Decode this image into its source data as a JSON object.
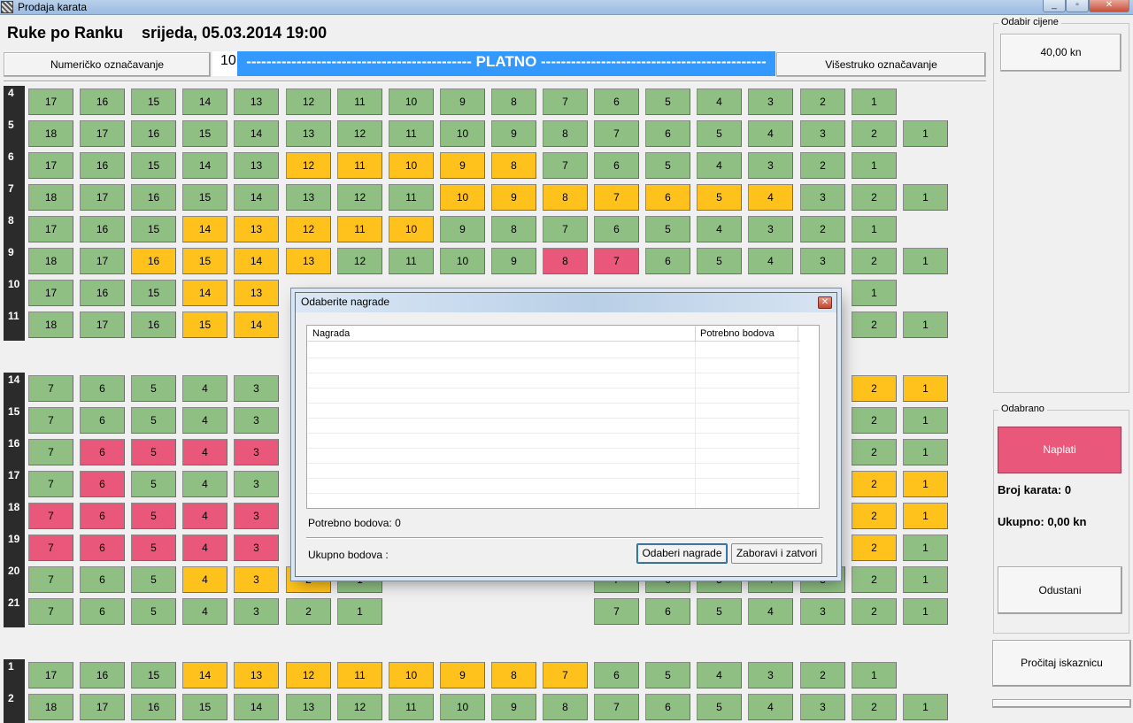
{
  "window": {
    "title": "Prodaja karata"
  },
  "header": {
    "event_name": "Ruke po Ranku",
    "event_datetime": "srijeda, 05.03.2014 19:00",
    "numeric_button": "Numeričko označavanje",
    "multi_button": "Višestruko označavanje",
    "hall_number": "10",
    "screen_label": "--------------------------------------------- PLATNO ---------------------------------------------"
  },
  "colors": {
    "free": "#8fbf83",
    "taken_yellow": "#ffc21c",
    "taken_pink": "#e9587a",
    "screen": "#3399ff"
  },
  "grid": {
    "rows": [
      {
        "label": "4",
        "seats": [
          "17",
          "16",
          "15",
          "14",
          "13",
          "12",
          "11",
          "10",
          "9",
          "8",
          "7",
          "6",
          "5",
          "4",
          "3",
          "2",
          "1"
        ],
        "status": "GGGGGGGGGGGGGGGGG"
      },
      {
        "label": "5",
        "seats": [
          "18",
          "17",
          "16",
          "15",
          "14",
          "13",
          "12",
          "11",
          "10",
          "9",
          "8",
          "7",
          "6",
          "5",
          "4",
          "3",
          "2",
          "1"
        ],
        "status": "GGGGGGGGGGGGGGGGGG"
      },
      {
        "label": "6",
        "seats": [
          "17",
          "16",
          "15",
          "14",
          "13",
          "12",
          "11",
          "10",
          "9",
          "8",
          "7",
          "6",
          "5",
          "4",
          "3",
          "2",
          "1"
        ],
        "status": "GGGGGYYYYYGGGGGGG"
      },
      {
        "label": "7",
        "seats": [
          "18",
          "17",
          "16",
          "15",
          "14",
          "13",
          "12",
          "11",
          "10",
          "9",
          "8",
          "7",
          "6",
          "5",
          "4",
          "3",
          "2",
          "1"
        ],
        "status": "GGGGGGGGYYYYYYYGGG"
      },
      {
        "label": "8",
        "seats": [
          "17",
          "16",
          "15",
          "14",
          "13",
          "12",
          "11",
          "10",
          "9",
          "8",
          "7",
          "6",
          "5",
          "4",
          "3",
          "2",
          "1"
        ],
        "status": "GGGYYYYYGGGGGGGGG"
      },
      {
        "label": "9",
        "seats": [
          "18",
          "17",
          "16",
          "15",
          "14",
          "13",
          "12",
          "11",
          "10",
          "9",
          "8",
          "7",
          "6",
          "5",
          "4",
          "3",
          "2",
          "1"
        ],
        "status": "GGYYYYGGGGPPGGGGGG"
      },
      {
        "label": "10",
        "seats": [
          "17",
          "16",
          "15",
          "14",
          "13",
          "",
          "",
          "",
          "",
          "",
          "",
          "",
          "",
          "",
          "",
          "",
          "1"
        ],
        "status": "GGGYYGGGGGPPPPPGG"
      },
      {
        "label": "11",
        "seats": [
          "18",
          "17",
          "16",
          "15",
          "14",
          "",
          "",
          "",
          "",
          "",
          "",
          "",
          "",
          "",
          "",
          "",
          "2",
          "1"
        ],
        "status": "GGGYYGGGGGGGGGGGGG"
      },
      {
        "label": "14",
        "seats": [
          "7",
          "6",
          "5",
          "4",
          "3",
          "",
          "",
          "",
          "",
          "",
          "",
          "",
          "",
          "",
          "",
          "",
          "2",
          "1"
        ],
        "status": "GGGGGGGGGGGGGGGGYY"
      },
      {
        "label": "15",
        "seats": [
          "7",
          "6",
          "5",
          "4",
          "3",
          "",
          "",
          "",
          "",
          "",
          "",
          "",
          "",
          "",
          "",
          "",
          "2",
          "1"
        ],
        "status": "GGGGGGGGGGGGGGGGGG"
      },
      {
        "label": "16",
        "seats": [
          "7",
          "6",
          "5",
          "4",
          "3",
          "",
          "",
          "",
          "",
          "",
          "",
          "",
          "",
          "",
          "",
          "",
          "2",
          "1"
        ],
        "status": "GPPPPPGGGGGGGGGPGG"
      },
      {
        "label": "17",
        "seats": [
          "7",
          "6",
          "5",
          "4",
          "3",
          "",
          "",
          "",
          "",
          "",
          "",
          "",
          "",
          "",
          "",
          "",
          "2",
          "1"
        ],
        "status": "GPGGGGGGGGGGGGGGYY"
      },
      {
        "label": "18",
        "seats": [
          "7",
          "6",
          "5",
          "4",
          "3",
          "",
          "",
          "",
          "",
          "",
          "",
          "",
          "",
          "",
          "",
          "",
          "2",
          "1"
        ],
        "status": "PPPPPGGGGGGGGGGGYY"
      },
      {
        "label": "19",
        "seats": [
          "7",
          "6",
          "5",
          "4",
          "3",
          "",
          "",
          "",
          "",
          "",
          "",
          "",
          "",
          "",
          "",
          "",
          "2",
          "1"
        ],
        "status": "PPPPPGGGGGGGGGGGYG"
      },
      {
        "label": "20",
        "seats": [
          "7",
          "6",
          "5",
          "4",
          "3",
          "2",
          "1",
          "",
          "",
          "",
          "",
          "7",
          "6",
          "5",
          "4",
          "3",
          "2",
          "1"
        ],
        "status": "GGGYYYGGGGGGGGGGGG"
      },
      {
        "label": "21",
        "seats": [
          "7",
          "6",
          "5",
          "4",
          "3",
          "2",
          "1",
          "",
          "",
          "",
          "",
          "7",
          "6",
          "5",
          "4",
          "3",
          "2",
          "1"
        ],
        "status": "GGGGGGGGGGGGGGGGGG"
      },
      {
        "label": "1",
        "seats": [
          "17",
          "16",
          "15",
          "14",
          "13",
          "12",
          "11",
          "10",
          "9",
          "8",
          "7",
          "6",
          "5",
          "4",
          "3",
          "2",
          "1"
        ],
        "status": "GGGYYYYYYYYGGGGGG"
      },
      {
        "label": "2",
        "seats": [
          "18",
          "17",
          "16",
          "15",
          "14",
          "13",
          "12",
          "11",
          "10",
          "9",
          "8",
          "7",
          "6",
          "5",
          "4",
          "3",
          "2",
          "1"
        ],
        "status": "GGGGGGGGGGGGGGGGGG"
      }
    ]
  },
  "price_panel": {
    "legend": "Odabir cijene",
    "price": "40,00 kn"
  },
  "selected_panel": {
    "legend": "Odabrano",
    "pay_button": "Naplati",
    "ticket_count": "Broj karata: 0",
    "total": "Ukupno: 0,00 kn",
    "cancel_button": "Odustani",
    "read_card_button": "Pročitaj iskaznicu"
  },
  "dialog": {
    "title": "Odaberite nagrade",
    "columns": [
      "Nagrada",
      "Potrebno bodova"
    ],
    "required_points": "Potrebno bodova: 0",
    "total_points": "Ukupno bodova :",
    "select_button": "Odaberi nagrade",
    "close_button": "Zaboravi i zatvori"
  }
}
